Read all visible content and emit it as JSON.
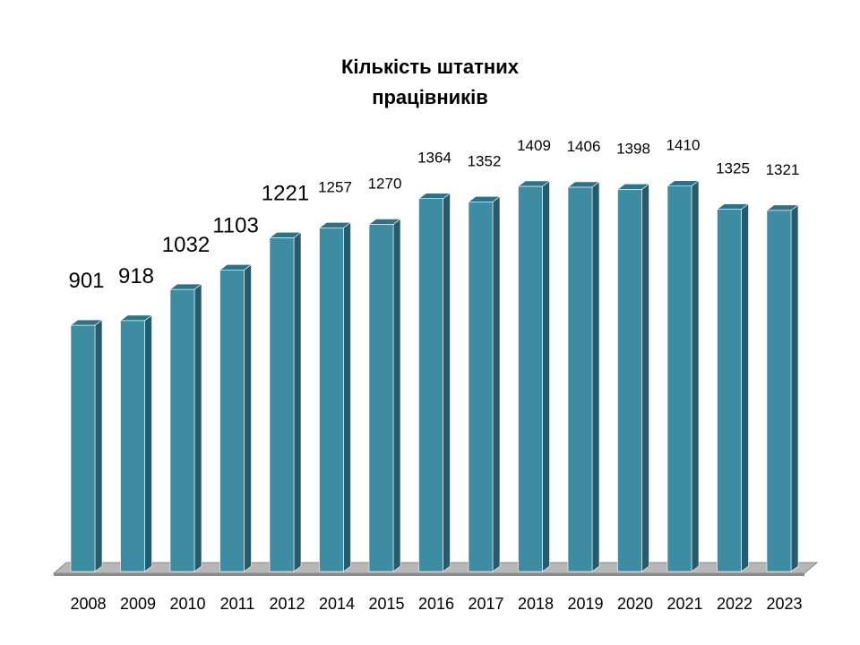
{
  "chart_data": {
    "type": "bar",
    "title_lines": [
      "Кількість штатних",
      "працівників"
    ],
    "categories": [
      "2008",
      "2009",
      "2010",
      "2011",
      "2012",
      "2014",
      "2015",
      "2016",
      "2017",
      "2018",
      "2019",
      "2020",
      "2021",
      "2022",
      "2023"
    ],
    "values": [
      901,
      918,
      1032,
      1103,
      1221,
      1257,
      1270,
      1364,
      1352,
      1409,
      1406,
      1398,
      1410,
      1325,
      1321
    ],
    "xlabel": "",
    "ylabel": "",
    "ylim": [
      0,
      1500
    ],
    "grid": false,
    "legend": "none",
    "colors": {
      "bar_front": "#3d8ca2",
      "bar_side": "#255b6c",
      "bar_top": "#2f7286",
      "floor": "#b7b7b7",
      "floor_edge": "#8a8a8a"
    }
  }
}
